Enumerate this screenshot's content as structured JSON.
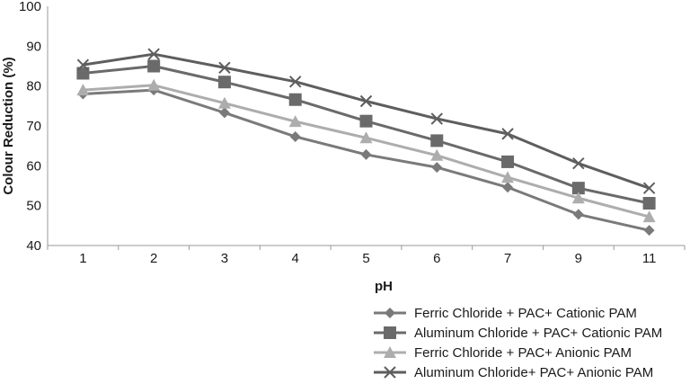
{
  "chart_data": {
    "type": "line",
    "title": "",
    "xlabel": "pH",
    "ylabel": "Colour Reduction (%)",
    "categories": [
      "1",
      "2",
      "3",
      "4",
      "5",
      "6",
      "7",
      "9",
      "11"
    ],
    "ylim": [
      40,
      100
    ],
    "yticks": [
      40,
      50,
      60,
      70,
      80,
      90,
      100
    ],
    "grid": false,
    "legend_position": "bottom-right",
    "series": [
      {
        "name": "Ferric Chloride + PAC+ Cationic PAM",
        "marker": "diamond",
        "color": "#7a7a7a",
        "values": [
          78,
          79,
          73.3,
          67.3,
          62.8,
          59.6,
          54.6,
          47.8,
          43.8
        ]
      },
      {
        "name": "Aluminum Chloride + PAC+ Cationic PAM",
        "marker": "square",
        "color": "#6a6a6a",
        "values": [
          83.2,
          85,
          81,
          76.6,
          71.2,
          66.3,
          61,
          54.4,
          50.6
        ]
      },
      {
        "name": "Ferric Chloride + PAC+ Anionic PAM",
        "marker": "triangle",
        "color": "#adadad",
        "values": [
          79,
          80.2,
          75.7,
          71.1,
          67,
          62.6,
          57.1,
          51.9,
          47.2
        ]
      },
      {
        "name": "Aluminum Chloride+ PAC+ Anionic PAM",
        "marker": "x",
        "color": "#5e5e5e",
        "values": [
          85.3,
          88,
          84.6,
          81.1,
          76.2,
          71.8,
          68,
          60.6,
          54.4
        ]
      }
    ]
  }
}
